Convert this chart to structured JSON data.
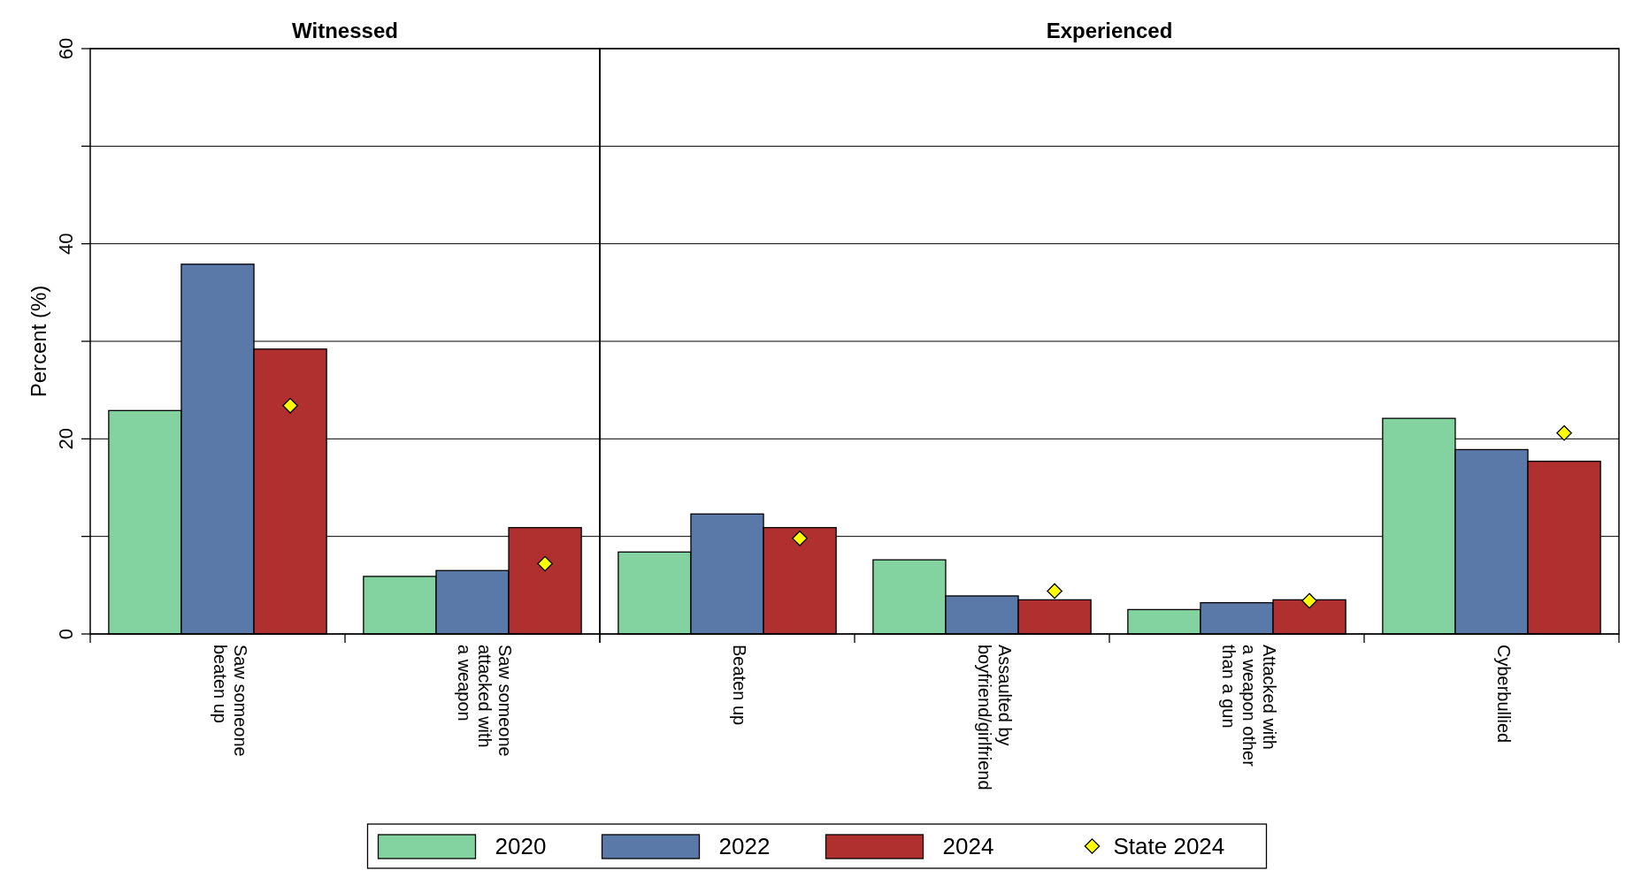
{
  "chart_data": [
    {
      "type": "bar",
      "title": "Witnessed",
      "ylabel": "Percent (%)",
      "categories": [
        "Saw someone beaten up",
        "Saw someone attacked with a weapon"
      ],
      "series": [
        {
          "color": "#83d3a0",
          "values": [
            22.9,
            5.9
          ]
        },
        {
          "color": "#5b79a8",
          "values": [
            37.9,
            6.5
          ]
        },
        {
          "color": "#b03030",
          "values": [
            29.2,
            10.9
          ]
        },
        {
          "type": "scatter",
          "marker": "diamond",
          "color": "#ffff00",
          "values": [
            23.4,
            7.2
          ]
        }
      ],
      "ylim": [
        0,
        60
      ],
      "yticks": [
        0,
        {
          "value": 10,
          "label": null
        },
        20,
        {
          "value": 30,
          "label": null
        },
        40,
        {
          "value": 50,
          "label": null
        },
        60
      ],
      "grid": "y"
    },
    {
      "type": "bar",
      "title": "Experienced",
      "categories": [
        "Beaten up",
        "Assaulted by boyfriend/girlfriend",
        "Attacked with a weapon other than a gun",
        "Cyberbullied"
      ],
      "series": [
        {
          "name": "2020",
          "color": "#83d3a0",
          "values": [
            8.4,
            7.6,
            2.5,
            22.1
          ]
        },
        {
          "name": "2022",
          "color": "#5b79a8",
          "values": [
            12.3,
            3.9,
            3.2,
            18.9
          ]
        },
        {
          "name": "2024",
          "color": "#b03030",
          "values": [
            10.9,
            3.5,
            3.5,
            17.7
          ]
        },
        {
          "name": "State 2024",
          "type": "scatter",
          "marker": "diamond",
          "color": "#ffff00",
          "values": [
            9.8,
            4.4,
            3.4,
            20.6
          ]
        }
      ],
      "ylim": [
        0,
        60
      ],
      "yticks": [
        0,
        {
          "value": 10,
          "label": null
        },
        20,
        {
          "value": 30,
          "label": null
        },
        40,
        {
          "value": 50,
          "label": null
        },
        60
      ],
      "grid": "y",
      "tick_labels": "x",
      "legend": "bottom"
    }
  ]
}
